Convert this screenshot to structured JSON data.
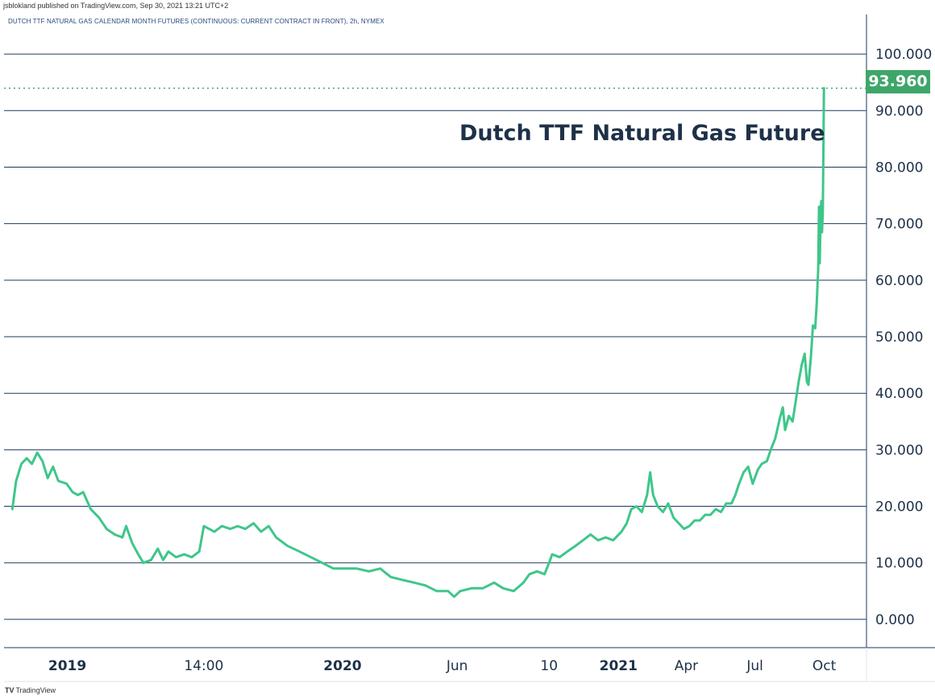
{
  "header": {
    "publisher": "jsblokland published on TradingView.com, Sep 30, 2021 13:21 UTC+2",
    "symbol": "DUTCH TTF NATURAL GAS CALENDAR MONTH FUTURES (CONTINUOUS: CURRENT CONTRACT IN FRONT), 2h, NYMEX"
  },
  "footer": {
    "logo": "TV",
    "brand": "TradingView"
  },
  "chart_data": {
    "type": "line",
    "title": "Dutch TTF Natural Gas Future",
    "last_price": "93.960",
    "line_color": "#3fc68a",
    "price_tag_color": "#3fa66a",
    "grid_color": "#1e3a5f",
    "grid": true,
    "ylim": [
      -5,
      107
    ],
    "y_ticks": [
      "0.000",
      "10.000",
      "20.000",
      "30.000",
      "40.000",
      "50.000",
      "60.000",
      "70.000",
      "80.000",
      "90.000",
      "100.000"
    ],
    "y_tick_values": [
      0,
      10,
      20,
      30,
      40,
      50,
      60,
      70,
      80,
      90,
      100
    ],
    "x_ticks": [
      {
        "label": "2019",
        "date": "2019-01-01",
        "bold": true
      },
      {
        "label": "14:00",
        "date": "2019-07-01",
        "bold": false
      },
      {
        "label": "2020",
        "date": "2020-01-01",
        "bold": true
      },
      {
        "label": "Jun",
        "date": "2020-06-01",
        "bold": false
      },
      {
        "label": "10",
        "date": "2020-10-01",
        "bold": false
      },
      {
        "label": "2021",
        "date": "2021-01-01",
        "bold": true
      },
      {
        "label": "Apr",
        "date": "2021-04-01",
        "bold": false
      },
      {
        "label": "Jul",
        "date": "2021-07-01",
        "bold": false
      },
      {
        "label": "Oct",
        "date": "2021-10-01",
        "bold": false
      }
    ],
    "series": [
      {
        "points": [
          [
            "2018-10-20",
            19.5
          ],
          [
            "2018-10-25",
            24.5
          ],
          [
            "2018-11-01",
            27.5
          ],
          [
            "2018-11-08",
            28.5
          ],
          [
            "2018-11-15",
            27.5
          ],
          [
            "2018-11-22",
            29.5
          ],
          [
            "2018-11-29",
            28.0
          ],
          [
            "2018-12-06",
            25.0
          ],
          [
            "2018-12-13",
            27.0
          ],
          [
            "2018-12-20",
            24.5
          ],
          [
            "2018-12-31",
            24.0
          ],
          [
            "2019-01-08",
            22.5
          ],
          [
            "2019-01-15",
            22.0
          ],
          [
            "2019-01-22",
            22.5
          ],
          [
            "2019-02-01",
            19.5
          ],
          [
            "2019-02-12",
            18.0
          ],
          [
            "2019-02-22",
            16.0
          ],
          [
            "2019-03-05",
            15.0
          ],
          [
            "2019-03-15",
            14.5
          ],
          [
            "2019-03-20",
            16.5
          ],
          [
            "2019-03-28",
            13.5
          ],
          [
            "2019-04-05",
            11.5
          ],
          [
            "2019-04-12",
            10.0
          ],
          [
            "2019-04-22",
            10.5
          ],
          [
            "2019-05-01",
            12.5
          ],
          [
            "2019-05-08",
            10.5
          ],
          [
            "2019-05-15",
            12.0
          ],
          [
            "2019-05-25",
            11.0
          ],
          [
            "2019-06-05",
            11.5
          ],
          [
            "2019-06-15",
            11.0
          ],
          [
            "2019-06-25",
            12.0
          ],
          [
            "2019-07-01",
            16.5
          ],
          [
            "2019-07-15",
            15.5
          ],
          [
            "2019-07-25",
            16.5
          ],
          [
            "2019-08-05",
            16.0
          ],
          [
            "2019-08-15",
            16.5
          ],
          [
            "2019-08-25",
            16.0
          ],
          [
            "2019-09-05",
            17.0
          ],
          [
            "2019-09-15",
            15.5
          ],
          [
            "2019-09-25",
            16.5
          ],
          [
            "2019-10-05",
            14.5
          ],
          [
            "2019-10-20",
            13.0
          ],
          [
            "2019-11-05",
            12.0
          ],
          [
            "2019-11-20",
            11.0
          ],
          [
            "2019-12-05",
            10.0
          ],
          [
            "2019-12-20",
            9.0
          ],
          [
            "2020-01-05",
            9.0
          ],
          [
            "2020-01-20",
            9.0
          ],
          [
            "2020-02-05",
            8.5
          ],
          [
            "2020-02-20",
            9.0
          ],
          [
            "2020-03-05",
            7.5
          ],
          [
            "2020-03-20",
            7.0
          ],
          [
            "2020-04-05",
            6.5
          ],
          [
            "2020-04-20",
            6.0
          ],
          [
            "2020-05-05",
            5.0
          ],
          [
            "2020-05-20",
            5.0
          ],
          [
            "2020-05-28",
            4.0
          ],
          [
            "2020-06-05",
            5.0
          ],
          [
            "2020-06-20",
            5.5
          ],
          [
            "2020-07-05",
            5.5
          ],
          [
            "2020-07-20",
            6.5
          ],
          [
            "2020-08-01",
            5.5
          ],
          [
            "2020-08-15",
            5.0
          ],
          [
            "2020-08-28",
            6.5
          ],
          [
            "2020-09-05",
            8.0
          ],
          [
            "2020-09-15",
            8.5
          ],
          [
            "2020-09-25",
            8.0
          ],
          [
            "2020-10-01",
            10.0
          ],
          [
            "2020-10-05",
            11.5
          ],
          [
            "2020-10-15",
            11.0
          ],
          [
            "2020-10-25",
            12.0
          ],
          [
            "2020-11-05",
            13.0
          ],
          [
            "2020-11-15",
            14.0
          ],
          [
            "2020-11-25",
            15.0
          ],
          [
            "2020-12-05",
            14.0
          ],
          [
            "2020-12-15",
            14.5
          ],
          [
            "2020-12-25",
            14.0
          ],
          [
            "2021-01-05",
            15.5
          ],
          [
            "2021-01-12",
            17.0
          ],
          [
            "2021-01-18",
            19.5
          ],
          [
            "2021-01-25",
            20.0
          ],
          [
            "2021-02-01",
            19.0
          ],
          [
            "2021-02-08",
            22.0
          ],
          [
            "2021-02-12",
            26.0
          ],
          [
            "2021-02-16",
            22.0
          ],
          [
            "2021-02-22",
            20.0
          ],
          [
            "2021-03-01",
            19.0
          ],
          [
            "2021-03-08",
            20.5
          ],
          [
            "2021-03-15",
            18.0
          ],
          [
            "2021-03-22",
            17.0
          ],
          [
            "2021-03-29",
            16.0
          ],
          [
            "2021-04-05",
            16.5
          ],
          [
            "2021-04-12",
            17.5
          ],
          [
            "2021-04-19",
            17.5
          ],
          [
            "2021-04-26",
            18.5
          ],
          [
            "2021-05-03",
            18.5
          ],
          [
            "2021-05-10",
            19.5
          ],
          [
            "2021-05-17",
            19.0
          ],
          [
            "2021-05-24",
            20.5
          ],
          [
            "2021-05-31",
            20.5
          ],
          [
            "2021-06-05",
            22.0
          ],
          [
            "2021-06-10",
            24.0
          ],
          [
            "2021-06-16",
            26.0
          ],
          [
            "2021-06-22",
            27.0
          ],
          [
            "2021-06-28",
            24.0
          ],
          [
            "2021-07-05",
            26.5
          ],
          [
            "2021-07-10",
            27.5
          ],
          [
            "2021-07-17",
            28.0
          ],
          [
            "2021-07-22",
            30.0
          ],
          [
            "2021-07-28",
            32.0
          ],
          [
            "2021-08-03",
            35.5
          ],
          [
            "2021-08-07",
            37.5
          ],
          [
            "2021-08-10",
            33.5
          ],
          [
            "2021-08-15",
            36.0
          ],
          [
            "2021-08-20",
            35.0
          ],
          [
            "2021-08-24",
            38.5
          ],
          [
            "2021-08-28",
            42.0
          ],
          [
            "2021-09-01",
            45.0
          ],
          [
            "2021-09-05",
            47.0
          ],
          [
            "2021-09-08",
            42.0
          ],
          [
            "2021-09-10",
            41.5
          ],
          [
            "2021-09-13",
            46.0
          ],
          [
            "2021-09-16",
            52.0
          ],
          [
            "2021-09-19",
            51.5
          ],
          [
            "2021-09-21",
            56.0
          ],
          [
            "2021-09-23",
            62.0
          ],
          [
            "2021-09-24",
            73.0
          ],
          [
            "2021-09-25",
            63.0
          ],
          [
            "2021-09-26",
            70.0
          ],
          [
            "2021-09-27",
            74.0
          ],
          [
            "2021-09-28",
            68.5
          ],
          [
            "2021-09-29",
            72.0
          ],
          [
            "2021-09-30",
            85.0
          ],
          [
            "2021-09-30T12",
            93.96
          ]
        ]
      }
    ]
  }
}
